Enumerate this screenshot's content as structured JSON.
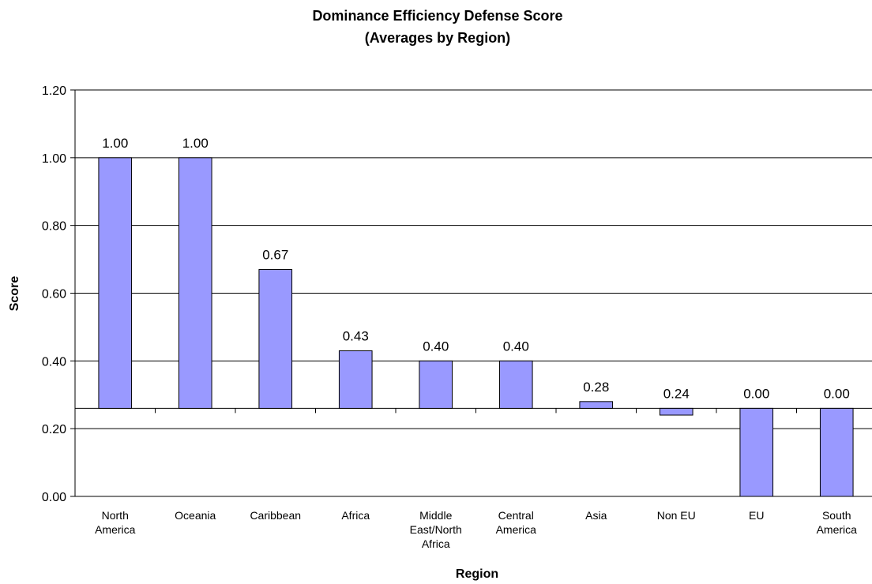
{
  "chart_data": {
    "type": "bar",
    "title": "Dominance Efficiency Defense Score",
    "subtitle": "(Averages by Region)",
    "xlabel": "Region",
    "ylabel": "Score",
    "categories": [
      "North America",
      "Oceania",
      "Caribbean",
      "Africa",
      "Middle East/North Africa",
      "Central America",
      "Asia",
      "Non EU",
      "EU",
      "South America"
    ],
    "category_label_lines": [
      [
        "North",
        "America"
      ],
      [
        "Oceania"
      ],
      [
        "Caribbean"
      ],
      [
        "Africa"
      ],
      [
        "Middle",
        "East/North",
        "Africa"
      ],
      [
        "Central",
        "America"
      ],
      [
        "Asia"
      ],
      [
        "Non EU"
      ],
      [
        "EU"
      ],
      [
        "South",
        "America"
      ]
    ],
    "values": [
      1.0,
      1.0,
      0.67,
      0.43,
      0.4,
      0.4,
      0.28,
      0.24,
      0.0,
      0.0
    ],
    "data_labels": [
      "1.00",
      "1.00",
      "0.67",
      "0.43",
      "0.40",
      "0.40",
      "0.28",
      "0.24",
      "0.00",
      "0.00"
    ],
    "baseline": 0.26,
    "ylim": [
      0,
      1.2
    ],
    "yticks": [
      0.0,
      0.2,
      0.4,
      0.6,
      0.8,
      1.0,
      1.2
    ],
    "ytick_labels": [
      "0.00",
      "0.20",
      "0.40",
      "0.60",
      "0.80",
      "1.00",
      "1.20"
    ],
    "grid": true,
    "legend": false,
    "bar_color": "#9999ff",
    "bar_stroke": "#000000"
  }
}
